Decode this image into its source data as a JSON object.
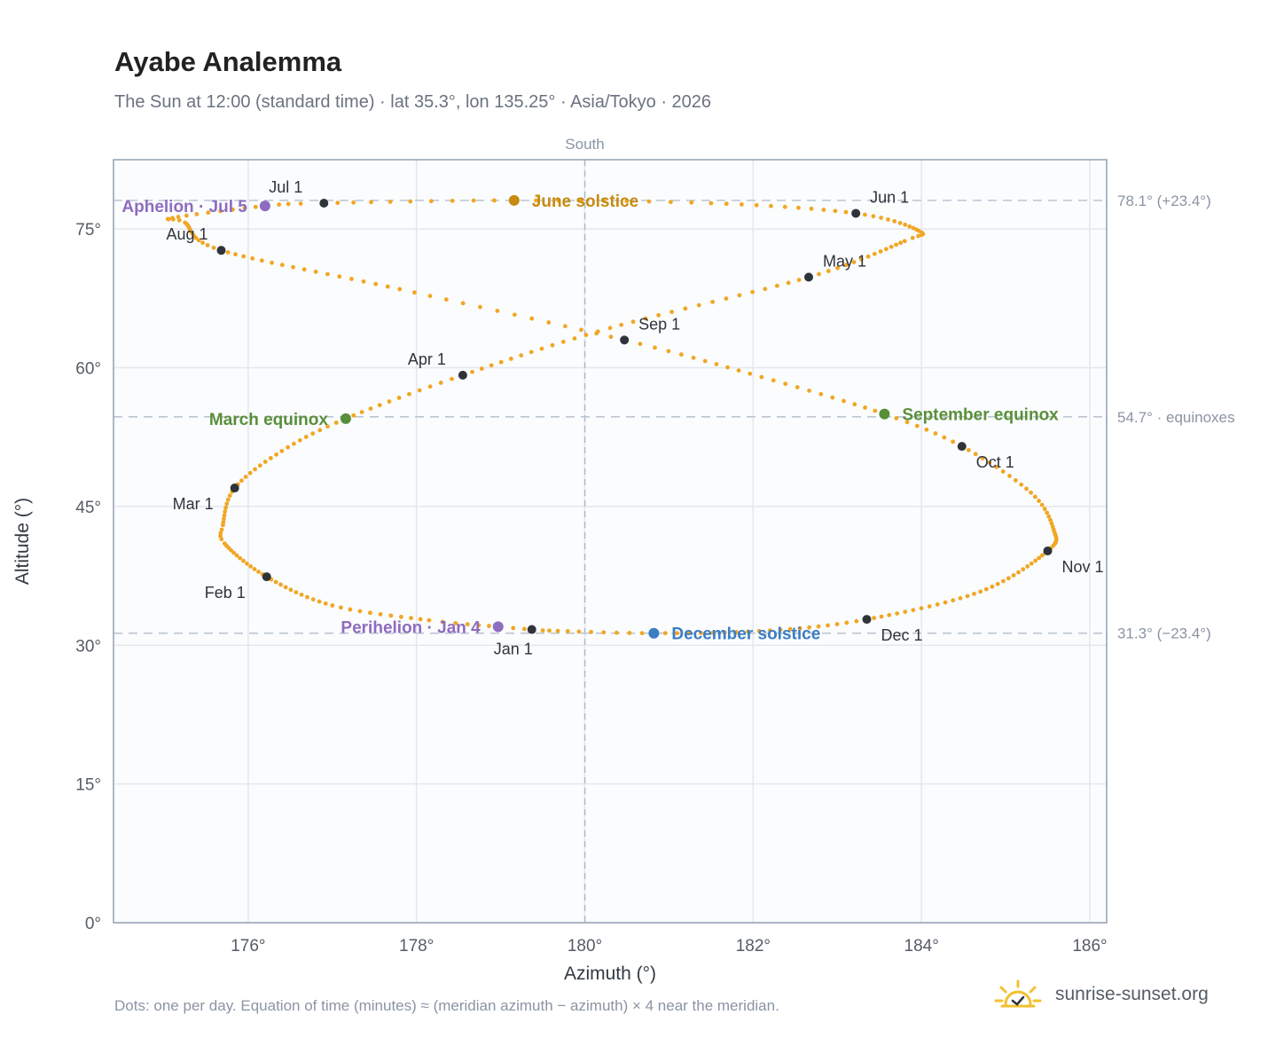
{
  "header": {
    "title": "Ayabe Analemma",
    "subtitle": "The Sun at 12:00 (standard time) · lat 35.3°, lon 135.25° · Asia/Tokyo · 2026"
  },
  "footer": {
    "note": "Dots: one per day. Equation of time (minutes) ≈ (meridian azimuth − azimuth) × 4 near the meridian.",
    "brand": "sunrise-sunset.org"
  },
  "chart_data": {
    "type": "scatter",
    "xlabel": "Azimuth (°)",
    "ylabel": "Altitude (°)",
    "xlim": [
      174.4,
      186.2
    ],
    "ylim": [
      0,
      82.5
    ],
    "x_ticks": [
      176,
      178,
      180,
      182,
      184,
      186
    ],
    "y_ticks": [
      0,
      15,
      30,
      45,
      60,
      75
    ],
    "tick_suffix": "°",
    "grid": true,
    "meridian": {
      "x": 180,
      "label": "South"
    },
    "reference_lines": [
      {
        "y": 78.1,
        "label": "78.1° (+23.4°)"
      },
      {
        "y": 54.7,
        "label": "54.7° · equinoxes"
      },
      {
        "y": 31.3,
        "label": "31.3° (−23.4°)"
      }
    ],
    "month_markers": [
      {
        "label": "Jan 1",
        "az": 179.37,
        "alt": 31.7,
        "pos": "below"
      },
      {
        "label": "Feb 1",
        "az": 176.22,
        "alt": 37.4,
        "pos": "below-left"
      },
      {
        "label": "Mar 1",
        "az": 175.84,
        "alt": 47.0,
        "pos": "below-left"
      },
      {
        "label": "Apr 1",
        "az": 178.55,
        "alt": 59.2,
        "pos": "above-left"
      },
      {
        "label": "May 1",
        "az": 182.66,
        "alt": 69.8,
        "pos": "above-right"
      },
      {
        "label": "Jun 1",
        "az": 183.22,
        "alt": 76.7,
        "pos": "above-right"
      },
      {
        "label": "Jul 1",
        "az": 176.9,
        "alt": 77.8,
        "pos": "above-left"
      },
      {
        "label": "Aug 1",
        "az": 175.68,
        "alt": 72.7,
        "pos": "above-left"
      },
      {
        "label": "Sep 1",
        "az": 180.47,
        "alt": 63.0,
        "pos": "above-right"
      },
      {
        "label": "Oct 1",
        "az": 184.48,
        "alt": 51.5,
        "pos": "below-right"
      },
      {
        "label": "Nov 1",
        "az": 185.5,
        "alt": 40.2,
        "pos": "below-right"
      },
      {
        "label": "Dec 1",
        "az": 183.35,
        "alt": 32.8,
        "pos": "below-right"
      }
    ],
    "special_points": [
      {
        "label": "June solstice",
        "az": 179.16,
        "alt": 78.1,
        "color": "#c88a10",
        "pos": "right"
      },
      {
        "label": "Aphelion · Jul 5",
        "az": 176.2,
        "alt": 77.5,
        "color": "#8e6cbf",
        "pos": "left"
      },
      {
        "label": "March equinox",
        "az": 177.16,
        "alt": 54.5,
        "color": "#5a8f3a",
        "pos": "left"
      },
      {
        "label": "September equinox",
        "az": 183.56,
        "alt": 55.0,
        "color": "#5a8f3a",
        "pos": "right"
      },
      {
        "label": "Perihelion · Jan 4",
        "az": 178.97,
        "alt": 32.0,
        "color": "#8e6cbf",
        "pos": "left"
      },
      {
        "label": "December solstice",
        "az": 180.82,
        "alt": 31.3,
        "color": "#3b7dc4",
        "pos": "right"
      }
    ],
    "daily_path": {
      "note_days": 365,
      "anchors": [
        {
          "day": 1,
          "az": 179.37,
          "alt": 31.7
        },
        {
          "day": 4,
          "az": 178.97,
          "alt": 32.0
        },
        {
          "day": 10,
          "az": 178.15,
          "alt": 32.7
        },
        {
          "day": 20,
          "az": 177.0,
          "alt": 34.3
        },
        {
          "day": 32,
          "az": 176.22,
          "alt": 37.4
        },
        {
          "day": 45,
          "az": 175.72,
          "alt": 41.0
        },
        {
          "day": 50,
          "az": 175.7,
          "alt": 43.0
        },
        {
          "day": 60,
          "az": 175.84,
          "alt": 47.0
        },
        {
          "day": 70,
          "az": 176.4,
          "alt": 51.0
        },
        {
          "day": 79,
          "az": 177.16,
          "alt": 54.5
        },
        {
          "day": 91,
          "az": 178.55,
          "alt": 59.2
        },
        {
          "day": 105,
          "az": 180.3,
          "alt": 64.3
        },
        {
          "day": 121,
          "az": 182.66,
          "alt": 69.8
        },
        {
          "day": 135,
          "az": 183.8,
          "alt": 73.7
        },
        {
          "day": 141,
          "az": 183.97,
          "alt": 74.8
        },
        {
          "day": 152,
          "az": 183.22,
          "alt": 76.7
        },
        {
          "day": 163,
          "az": 181.5,
          "alt": 77.8
        },
        {
          "day": 172,
          "az": 179.16,
          "alt": 78.1
        },
        {
          "day": 182,
          "az": 176.9,
          "alt": 77.8
        },
        {
          "day": 186,
          "az": 176.2,
          "alt": 77.5
        },
        {
          "day": 195,
          "az": 175.1,
          "alt": 76.2
        },
        {
          "day": 200,
          "az": 175.25,
          "alt": 75.7
        },
        {
          "day": 213,
          "az": 175.68,
          "alt": 72.7
        },
        {
          "day": 230,
          "az": 177.8,
          "alt": 68.5
        },
        {
          "day": 244,
          "az": 180.47,
          "alt": 63.0
        },
        {
          "day": 255,
          "az": 182.1,
          "alt": 59.0
        },
        {
          "day": 266,
          "az": 183.56,
          "alt": 55.0
        },
        {
          "day": 274,
          "az": 184.48,
          "alt": 51.5
        },
        {
          "day": 285,
          "az": 185.3,
          "alt": 46.5
        },
        {
          "day": 295,
          "az": 185.57,
          "alt": 42.5
        },
        {
          "day": 305,
          "az": 185.5,
          "alt": 40.2
        },
        {
          "day": 320,
          "az": 184.7,
          "alt": 35.8
        },
        {
          "day": 335,
          "az": 183.35,
          "alt": 32.8
        },
        {
          "day": 345,
          "az": 182.2,
          "alt": 31.6
        },
        {
          "day": 355,
          "az": 180.82,
          "alt": 31.3
        },
        {
          "day": 365,
          "az": 179.5,
          "alt": 31.6
        }
      ]
    }
  },
  "colors": {
    "path": "#f2a623",
    "marker": "#2f343b",
    "plot_bg": "#fafcfe",
    "plot_border": "#9aa6b5",
    "grid": "#e3e8ee",
    "ref_line": "#bcc6d1",
    "meridian": "#a9b9c6",
    "tick_text": "#555c66",
    "ref_text": "#8a94a3",
    "brand_sun": "#f2c12e"
  }
}
